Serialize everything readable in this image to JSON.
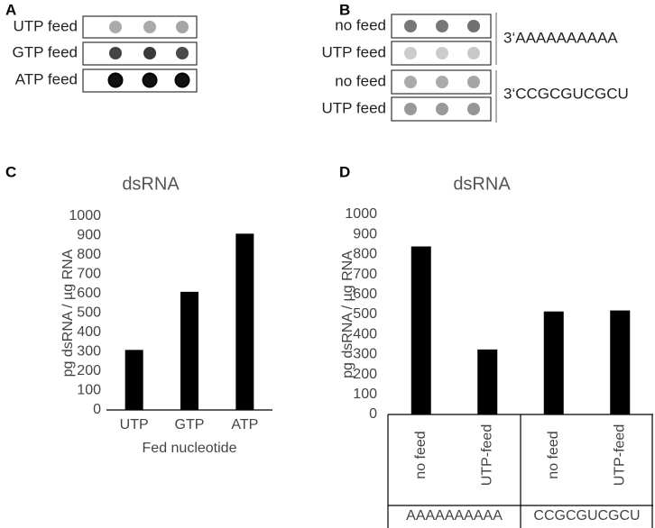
{
  "panel_a": {
    "letter": "A",
    "rows": [
      "UTP feed",
      "GTP feed",
      "ATP feed"
    ]
  },
  "panel_b": {
    "letter": "B",
    "rows": [
      "no feed",
      "UTP feed",
      "no feed",
      "UTP feed"
    ],
    "groups": [
      "3‘AAAAAAAAAA",
      "3‘CCGCGUCGCU"
    ]
  },
  "chart_data": [
    {
      "type": "bar",
      "panel_label": "C",
      "title": "dsRNA",
      "y_label": "pg dsRNA / µg RNA",
      "x_label": "Fed nucleotide",
      "categories": [
        "UTP",
        "GTP",
        "ATP"
      ],
      "values": [
        310,
        610,
        910
      ],
      "color": "#000000",
      "ylim": [
        0,
        1000
      ],
      "yticks": [
        0,
        100,
        200,
        300,
        400,
        500,
        600,
        700,
        800,
        900,
        1000
      ]
    },
    {
      "type": "bar",
      "panel_label": "D",
      "title": "dsRNA",
      "y_label": "pg dsRNA / µg RNA",
      "categories": [
        "no feed",
        "UTP-feed",
        "no feed",
        "UTP-feed"
      ],
      "groups": [
        "AAAAAAAAAA",
        "CCGCGUCGCU"
      ],
      "values": [
        840,
        325,
        515,
        520
      ],
      "color": "#000000",
      "ylim": [
        0,
        1000
      ],
      "yticks": [
        0,
        100,
        200,
        300,
        400,
        500,
        600,
        700,
        800,
        900,
        1000
      ]
    }
  ]
}
